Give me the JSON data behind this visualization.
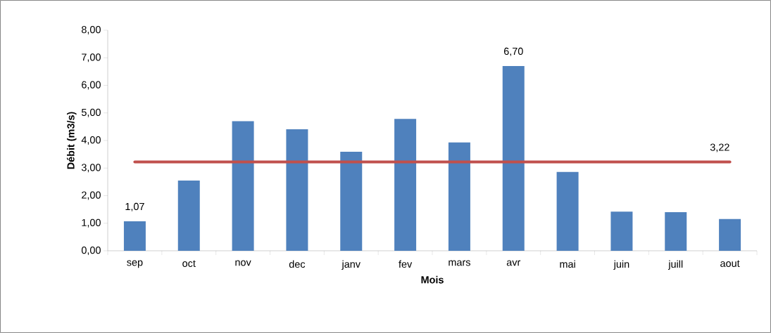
{
  "chart_data": {
    "type": "bar",
    "xlabel": "Mois",
    "ylabel": "Débit (m3/s)",
    "categories": [
      "sep",
      "oct",
      "nov",
      "dec",
      "janv",
      "fev",
      "mars",
      "avr",
      "mai",
      "juin",
      "juill",
      "aout"
    ],
    "values": [
      1.07,
      2.55,
      4.7,
      4.41,
      3.59,
      4.78,
      3.93,
      6.7,
      2.86,
      1.42,
      1.4,
      1.15
    ],
    "value_labels": [
      "1,07",
      null,
      null,
      null,
      null,
      null,
      null,
      "6,70",
      null,
      null,
      null,
      null
    ],
    "color": "#4f81bd",
    "ylim": [
      0,
      8
    ],
    "yticks": [
      {
        "value": 0,
        "label": "0,00"
      },
      {
        "value": 1,
        "label": "1,00"
      },
      {
        "value": 2,
        "label": "2,00"
      },
      {
        "value": 3,
        "label": "3,00"
      },
      {
        "value": 4,
        "label": "4,00"
      },
      {
        "value": 5,
        "label": "5,00"
      },
      {
        "value": 6,
        "label": "6,00"
      },
      {
        "value": 7,
        "label": "7,00"
      },
      {
        "value": 8,
        "label": "8,00"
      }
    ],
    "ref_lines": [
      {
        "axis": "y",
        "value": 3.22,
        "label": "3,22",
        "color": "#c0504d"
      }
    ]
  }
}
